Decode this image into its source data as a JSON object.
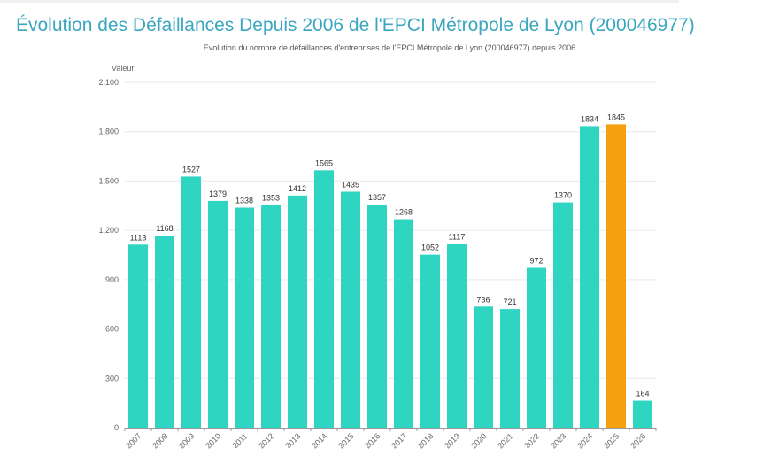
{
  "header": {
    "title": "Évolution des Défaillances Depuis 2006 de l'EPCI Métropole de Lyon (200046977)"
  },
  "chart_data": {
    "type": "bar",
    "title": "Evolution du nombre de défaillances d'entreprises de l'EPCI Métropole de Lyon (200046977) depuis 2006",
    "ylabel": "Valeur",
    "xlabel": "",
    "ylim": [
      0,
      2100
    ],
    "yticks": [
      0,
      300,
      600,
      900,
      1200,
      1500,
      1800,
      2100
    ],
    "ytick_labels": [
      "0",
      "300",
      "600",
      "900",
      "1,200",
      "1,500",
      "1,800",
      "2,100"
    ],
    "grid": true,
    "categories": [
      "2007",
      "2008",
      "2009",
      "2010",
      "2011",
      "2012",
      "2013",
      "2014",
      "2015",
      "2016",
      "2017",
      "2018",
      "2019",
      "2020",
      "2021",
      "2022",
      "2023",
      "2024",
      "2025",
      "2026"
    ],
    "values": [
      1113,
      1168,
      1527,
      1379,
      1338,
      1353,
      1412,
      1565,
      1435,
      1357,
      1268,
      1052,
      1117,
      736,
      721,
      972,
      1370,
      1834,
      1845,
      164
    ],
    "colors": {
      "default": "#2ed5c1",
      "highlight": "#f5a00f",
      "highlight_category": "2025"
    }
  }
}
